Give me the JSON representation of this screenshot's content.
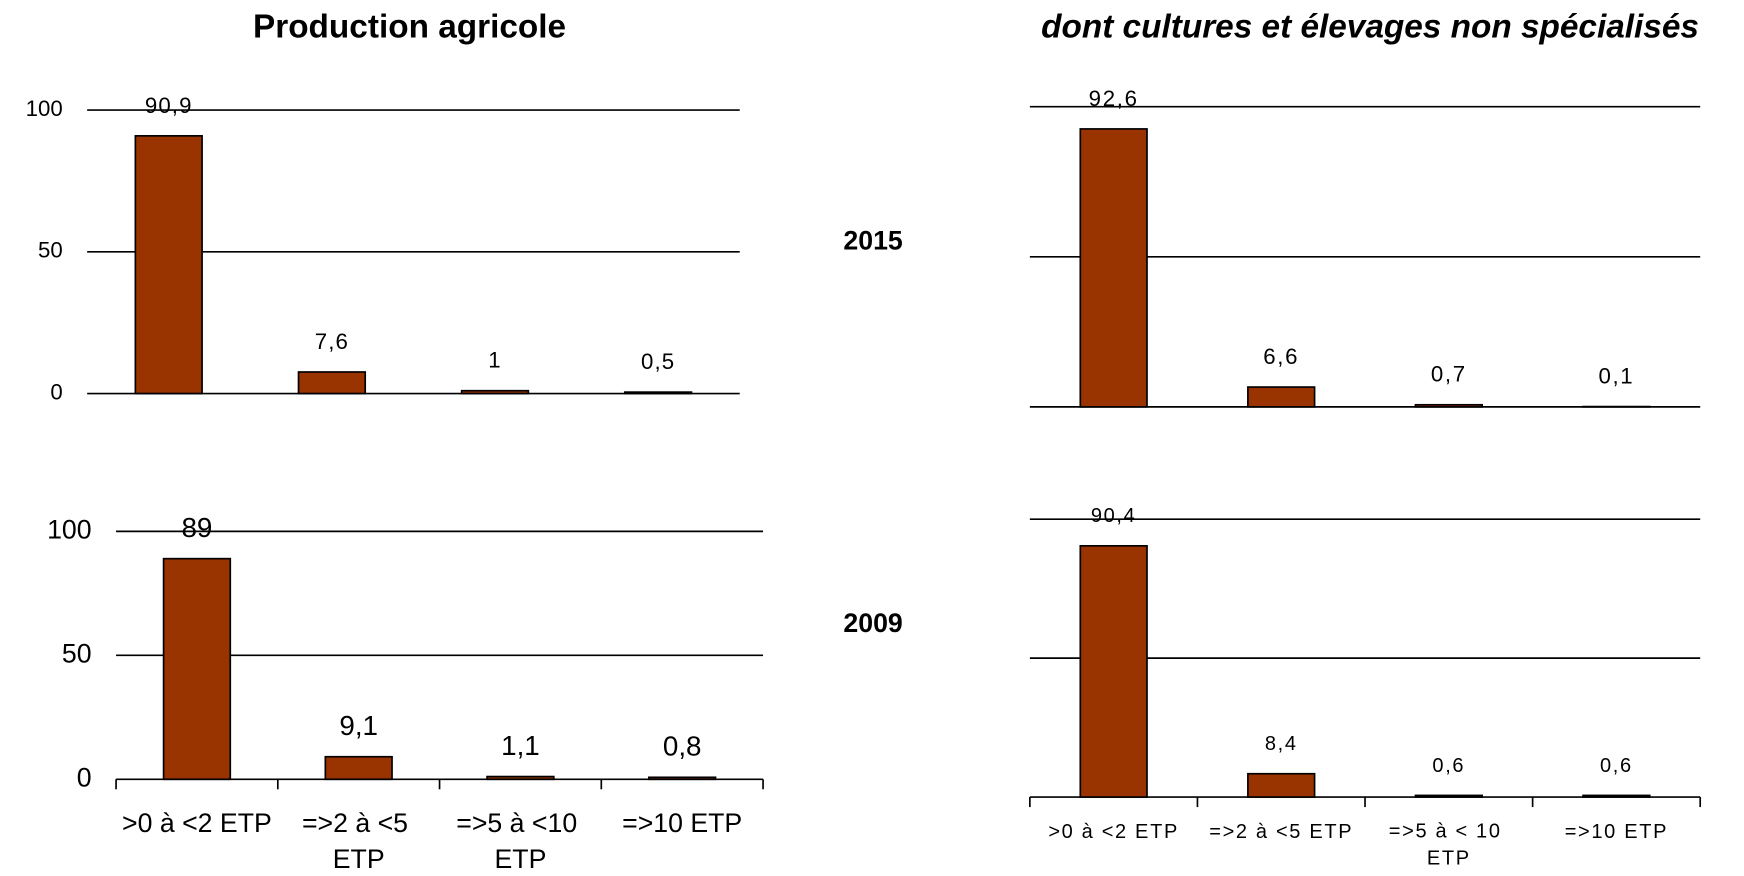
{
  "column_titles": [
    "Production agricole",
    "dont cultures et élevages non spécialisés"
  ],
  "row_labels": [
    "2015",
    "2009"
  ],
  "chart_data": [
    {
      "type": "bar",
      "values": [
        90.9,
        7.6,
        1,
        0.5
      ],
      "value_labels": [
        "90,9",
        "7,6",
        "1",
        "0,5"
      ],
      "color": "#993300",
      "ylim": [
        0,
        100
      ],
      "yticks": [
        0,
        50,
        100
      ],
      "grid": true
    },
    {
      "type": "bar",
      "values": [
        92.6,
        6.6,
        0.7,
        0.1
      ],
      "value_labels": [
        "92,6",
        "6,6",
        "0,7",
        "0,1"
      ],
      "color": "#993300",
      "ylim": [
        0,
        100
      ],
      "grid_lines": [
        0,
        50,
        100
      ],
      "grid": true
    },
    {
      "type": "bar",
      "categories": [
        ">0 à <2 ETP",
        "=>2 à <5 ETP",
        "=>5 à <10 ETP",
        "=>10 ETP"
      ],
      "values": [
        89,
        9.1,
        1.1,
        0.8
      ],
      "value_labels": [
        "89",
        "9,1",
        "1,1",
        "0,8"
      ],
      "color": "#993300",
      "ylim": [
        0,
        100
      ],
      "yticks": [
        0,
        50,
        100
      ],
      "grid": true
    },
    {
      "type": "bar",
      "categories": [
        ">0 à <2 ETP",
        "=>2 à <5 ETP",
        "=>5 à < 10 ETP",
        "=>10 ETP"
      ],
      "values": [
        90.4,
        8.4,
        0.6,
        0.6
      ],
      "value_labels": [
        "90,4",
        "8,4",
        "0,6",
        "0,6"
      ],
      "color": "#993300",
      "ylim": [
        0,
        100
      ],
      "grid_lines": [
        0,
        50,
        100
      ],
      "grid": true
    }
  ]
}
